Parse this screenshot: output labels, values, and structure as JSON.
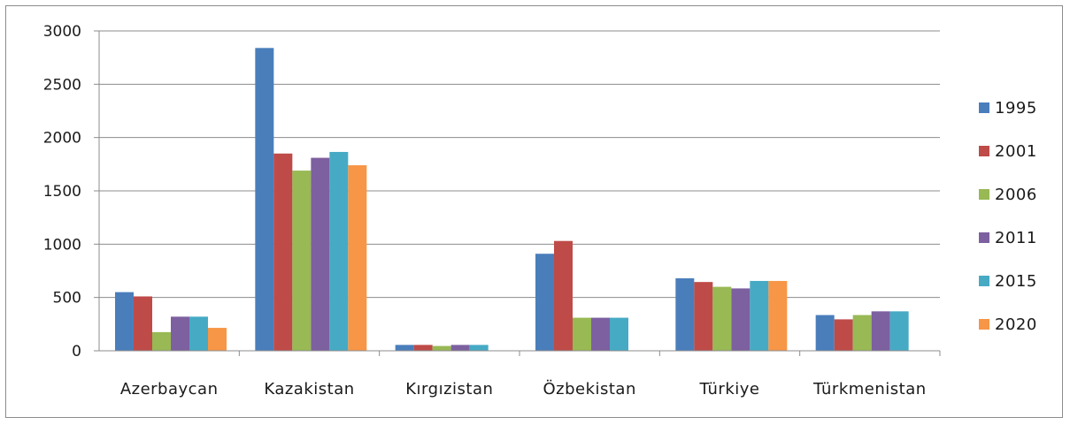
{
  "chart_data": {
    "type": "bar",
    "categories": [
      "Azerbaycan",
      "Kazakistan",
      "Kırgızistan",
      "Özbekistan",
      "Türkiye",
      "Türkmenistan"
    ],
    "series": [
      {
        "name": "1995",
        "color": "#4a7ebb",
        "values": [
          550,
          2840,
          55,
          910,
          680,
          335
        ]
      },
      {
        "name": "2001",
        "color": "#be4b48",
        "values": [
          510,
          1850,
          55,
          1030,
          645,
          295
        ]
      },
      {
        "name": "2006",
        "color": "#98b954",
        "values": [
          175,
          1690,
          45,
          310,
          600,
          335
        ]
      },
      {
        "name": "2011",
        "color": "#7d60a0",
        "values": [
          320,
          1810,
          55,
          310,
          585,
          370
        ]
      },
      {
        "name": "2015",
        "color": "#46aac5",
        "values": [
          320,
          1865,
          55,
          310,
          655,
          370
        ]
      },
      {
        "name": "2020",
        "color": "#f79646",
        "values": [
          215,
          1740,
          null,
          null,
          655,
          null
        ]
      }
    ],
    "ylim": [
      0,
      3000
    ],
    "yticks": [
      "0",
      "500",
      "1000",
      "1500",
      "2000",
      "2500",
      "3000"
    ],
    "grid": true,
    "legend_position": "right",
    "title": "",
    "xlabel": "",
    "ylabel": ""
  }
}
